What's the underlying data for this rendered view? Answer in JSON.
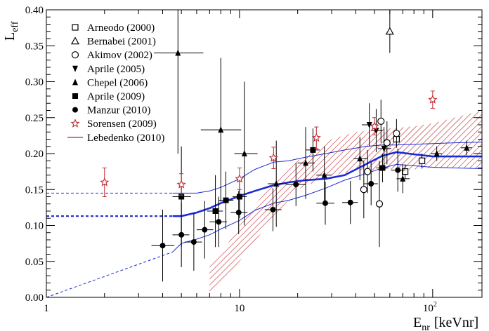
{
  "chart_data": {
    "type": "scatter",
    "title": "",
    "xlabel_main": "E",
    "xlabel_sub": "nr",
    "xlabel_unit": "[keVnr]",
    "ylabel_main": "L",
    "ylabel_sub": "eff",
    "xscale": "log",
    "xlim": [
      1,
      180
    ],
    "ylim": [
      0,
      0.4
    ],
    "grid": false,
    "legend_position": "top-left",
    "x_ticks": [
      {
        "value": 1,
        "label": "1"
      },
      {
        "value": 10,
        "label": "10"
      },
      {
        "value": 100,
        "label": "10",
        "exp": "2"
      }
    ],
    "y_ticks": [
      {
        "value": 0,
        "label": "0.00"
      },
      {
        "value": 0.05,
        "label": "0.05"
      },
      {
        "value": 0.1,
        "label": "0.10"
      },
      {
        "value": 0.15,
        "label": "0.15"
      },
      {
        "value": 0.2,
        "label": "0.20"
      },
      {
        "value": 0.25,
        "label": "0.25"
      },
      {
        "value": 0.3,
        "label": "0.30"
      },
      {
        "value": 0.35,
        "label": "0.35"
      },
      {
        "value": 0.4,
        "label": "0.40"
      }
    ],
    "series": [
      {
        "name": "Arneodo (2000)",
        "marker": "open-square",
        "color": "#000000",
        "points": [
          {
            "x": 65,
            "y": 0.22,
            "yerr": 0.01
          },
          {
            "x": 88,
            "y": 0.19,
            "yerr": 0.01
          },
          {
            "x": 72,
            "y": 0.175,
            "yerr": 0.01
          }
        ]
      },
      {
        "name": "Bernabei (2001)",
        "marker": "open-triangle",
        "color": "#000000",
        "points": [
          {
            "x": 60,
            "y": 0.37,
            "yerr": 0.03
          }
        ]
      },
      {
        "name": "Akimov (2002)",
        "marker": "open-circle",
        "color": "#000000",
        "points": [
          {
            "x": 44,
            "y": 0.15,
            "yerr": 0.04
          },
          {
            "x": 46,
            "y": 0.175,
            "yerr": 0.03
          },
          {
            "x": 53,
            "y": 0.13,
            "yerr": 0.06
          },
          {
            "x": 54,
            "y": 0.245,
            "yerr": 0.03
          },
          {
            "x": 58,
            "y": 0.215,
            "yerr": 0.03
          },
          {
            "x": 65,
            "y": 0.228,
            "yerr": 0.02
          }
        ]
      },
      {
        "name": "Aprile (2005)",
        "marker": "filled-triangle-down",
        "color": "#000000",
        "points": [
          {
            "x": 47,
            "y": 0.24,
            "yerr": 0.03,
            "xl": 43,
            "xr": 52
          },
          {
            "x": 51,
            "y": 0.232,
            "yerr": 0.03,
            "xl": 48,
            "xr": 55
          },
          {
            "x": 56,
            "y": 0.207,
            "yerr": 0.03,
            "xl": 52,
            "xr": 61
          }
        ]
      },
      {
        "name": "Chepel (2006)",
        "marker": "filled-triangle-up",
        "color": "#000000",
        "points": [
          {
            "x": 4.8,
            "y": 0.34,
            "yerr": 0.14,
            "xl": 3.6,
            "xr": 6.5
          },
          {
            "x": 8.0,
            "y": 0.233,
            "yerr": 0.1,
            "xl": 6.3,
            "xr": 10.2
          },
          {
            "x": 10.6,
            "y": 0.2,
            "yerr": 0.1,
            "xl": 9.4,
            "xr": 12.4
          },
          {
            "x": 15.5,
            "y": 0.158,
            "yerr": 0.06,
            "xl": 14,
            "xr": 17.5
          },
          {
            "x": 22.0,
            "y": 0.187,
            "yerr": 0.05,
            "xl": 20,
            "xr": 24.5
          },
          {
            "x": 27.5,
            "y": 0.17,
            "yerr": 0.04,
            "xl": 25,
            "xr": 30
          },
          {
            "x": 42.0,
            "y": 0.193,
            "yerr": 0.03,
            "xl": 39,
            "xr": 46
          },
          {
            "x": 70.0,
            "y": 0.165,
            "yerr": 0.02,
            "xl": 65,
            "xr": 76
          },
          {
            "x": 105,
            "y": 0.2,
            "yerr": 0.01,
            "xl": 98,
            "xr": 112
          },
          {
            "x": 150,
            "y": 0.208,
            "yerr": 0.01,
            "xl": 140,
            "xr": 160
          }
        ]
      },
      {
        "name": "Aprile (2009)",
        "marker": "filled-square",
        "color": "#000000",
        "points": [
          {
            "x": 5.0,
            "y": 0.14,
            "yerr": 0.07,
            "xl": 4.5,
            "xr": 5.6
          },
          {
            "x": 7.5,
            "y": 0.12,
            "yerr": 0.05,
            "xl": 6.8,
            "xr": 8.2
          },
          {
            "x": 8.5,
            "y": 0.135,
            "yerr": 0.04,
            "xl": 7.8,
            "xr": 9.3
          },
          {
            "x": 10.0,
            "y": 0.14,
            "yerr": 0.03,
            "xl": 9.2,
            "xr": 10.9
          },
          {
            "x": 24.0,
            "y": 0.205,
            "yerr": 0.03,
            "xl": 22,
            "xr": 26
          },
          {
            "x": 55.0,
            "y": 0.18,
            "yerr": 0.02,
            "xl": 51,
            "xr": 59
          }
        ]
      },
      {
        "name": "Manzur (2010)",
        "marker": "filled-circle",
        "color": "#000000",
        "points": [
          {
            "x": 4.0,
            "y": 0.072,
            "yerr": 0.05,
            "xl": 3.5,
            "xr": 4.6
          },
          {
            "x": 5.0,
            "y": 0.087,
            "yerr": 0.045,
            "xl": 4.5,
            "xr": 5.5
          },
          {
            "x": 5.8,
            "y": 0.077,
            "yerr": 0.04,
            "xl": 5.2,
            "xr": 6.4
          },
          {
            "x": 6.6,
            "y": 0.094,
            "yerr": 0.04,
            "xl": 6.0,
            "xr": 7.3
          },
          {
            "x": 7.8,
            "y": 0.105,
            "yerr": 0.035,
            "xl": 7.0,
            "xr": 8.6
          },
          {
            "x": 9.9,
            "y": 0.118,
            "yerr": 0.03,
            "xl": 9.0,
            "xr": 11.0
          },
          {
            "x": 14.9,
            "y": 0.122,
            "yerr": 0.03,
            "xl": 13.5,
            "xr": 16.5
          },
          {
            "x": 19.6,
            "y": 0.157,
            "yerr": 0.03,
            "xl": 17.5,
            "xr": 22
          },
          {
            "x": 27.8,
            "y": 0.131,
            "yerr": 0.03,
            "xl": 25,
            "xr": 31
          },
          {
            "x": 37.5,
            "y": 0.132,
            "yerr": 0.03,
            "xl": 34,
            "xr": 41
          },
          {
            "x": 48.0,
            "y": 0.158,
            "yerr": 0.03,
            "xl": 44,
            "xr": 52
          },
          {
            "x": 66.0,
            "y": 0.177,
            "yerr": 0.03,
            "xl": 61,
            "xr": 72
          }
        ]
      },
      {
        "name": "Sorensen (2009)",
        "marker": "open-star",
        "color": "#c0282e",
        "points": [
          {
            "x": 2,
            "y": 0.16,
            "yerr": 0.02
          },
          {
            "x": 5,
            "y": 0.157,
            "yerr": 0.015
          },
          {
            "x": 10,
            "y": 0.165,
            "yerr": 0.015
          },
          {
            "x": 15,
            "y": 0.194,
            "yerr": 0.015
          },
          {
            "x": 25,
            "y": 0.222,
            "yerr": 0.015
          },
          {
            "x": 50,
            "y": 0.238,
            "yerr": 0.012
          },
          {
            "x": 100,
            "y": 0.275,
            "yerr": 0.012
          }
        ]
      },
      {
        "name": "Lebedenko (2010)",
        "marker": "line-hatched-band",
        "color": "#c0282e",
        "band": {
          "x": [
            7,
            8,
            10,
            13,
            16,
            20,
            30,
            40,
            60,
            80,
            100,
            130,
            180
          ],
          "lower": [
            0.005,
            0.02,
            0.05,
            0.09,
            0.12,
            0.15,
            0.17,
            0.175,
            0.178,
            0.178,
            0.18,
            0.18,
            0.18
          ],
          "upper": [
            0.045,
            0.06,
            0.1,
            0.14,
            0.17,
            0.19,
            0.22,
            0.23,
            0.235,
            0.238,
            0.242,
            0.25,
            0.26
          ]
        }
      }
    ],
    "global_fit": {
      "name": "Global fit",
      "color": "#1a2bd6",
      "x": [
        1,
        4.5,
        5,
        6,
        7,
        8,
        10,
        12,
        15,
        18,
        22,
        28,
        35,
        45,
        55,
        65,
        80,
        100,
        130,
        180
      ],
      "mean": [
        0.113,
        0.113,
        0.113,
        0.118,
        0.124,
        0.131,
        0.141,
        0.148,
        0.156,
        0.16,
        0.163,
        0.165,
        0.17,
        0.185,
        0.197,
        0.202,
        0.199,
        0.196,
        0.196,
        0.196
      ],
      "upper": [
        0.145,
        0.145,
        0.145,
        0.145,
        0.148,
        0.153,
        0.165,
        0.178,
        0.188,
        0.19,
        0.195,
        0.2,
        0.205,
        0.21,
        0.212,
        0.212,
        0.213,
        0.214,
        0.215,
        0.216
      ],
      "lower": [
        0.0,
        0.063,
        0.075,
        0.081,
        0.087,
        0.095,
        0.107,
        0.121,
        0.131,
        0.135,
        0.142,
        0.152,
        0.163,
        0.172,
        0.18,
        0.185,
        0.183,
        0.181,
        0.18,
        0.179
      ],
      "measured_from": 4.5
    }
  }
}
